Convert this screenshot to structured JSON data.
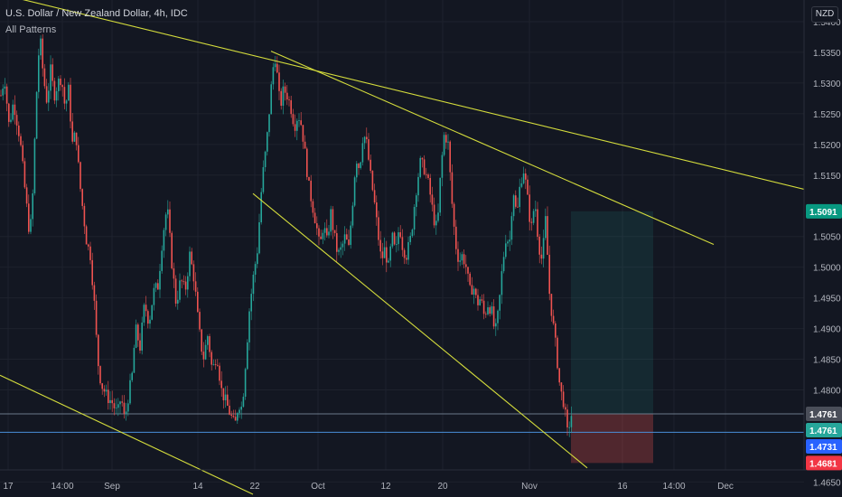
{
  "header": {
    "title": "U.S. Dollar / New Zealand Dollar, 4h, IDC",
    "indicator": "All Patterns"
  },
  "currency_label": "NZD",
  "colors": {
    "background": "#131722",
    "grid": "#1e222d",
    "up": "#26a69a",
    "down": "#ef5350",
    "trendline": "#d4dc3c",
    "axis_text": "#b2b5be",
    "hline": "#4a90d9"
  },
  "chart_data": {
    "type": "candlestick",
    "symbol": "USDNZD",
    "timeframe": "4h",
    "y_axis": {
      "range": [
        1.463,
        1.545
      ],
      "ticks": [
        "1.5400",
        "1.5350",
        "1.5300",
        "1.5250",
        "1.5200",
        "1.5150",
        "1.5050",
        "1.5000",
        "1.4950",
        "1.4900",
        "1.4850",
        "1.4800",
        "1.4650"
      ]
    },
    "x_axis": {
      "ticks": [
        "17",
        "14:00",
        "Sep",
        "14",
        "22",
        "Oct",
        "12",
        "20",
        "Nov",
        "16",
        "14:00",
        "Dec"
      ]
    },
    "price_labels": [
      {
        "value": 1.5091,
        "text": "1.5091",
        "kind": "last"
      },
      {
        "value": 1.4761,
        "text": "1.4761",
        "kind": "gray"
      },
      {
        "value": 1.4761,
        "text": "1.4761",
        "kind": "green"
      },
      {
        "value": 1.4731,
        "text": "1.4731",
        "kind": "blue"
      },
      {
        "value": 1.4681,
        "text": "1.4681",
        "kind": "red"
      }
    ],
    "price_path": [
      [
        1,
        1.528
      ],
      [
        5,
        1.531
      ],
      [
        10,
        1.523
      ],
      [
        15,
        1.527
      ],
      [
        22,
        1.521
      ],
      [
        28,
        1.512
      ],
      [
        33,
        1.505
      ],
      [
        36,
        1.511
      ],
      [
        40,
        1.527
      ],
      [
        44,
        1.538
      ],
      [
        48,
        1.531
      ],
      [
        52,
        1.527
      ],
      [
        56,
        1.532
      ],
      [
        60,
        1.528
      ],
      [
        64,
        1.53
      ],
      [
        68,
        1.531
      ],
      [
        72,
        1.526
      ],
      [
        76,
        1.529
      ],
      [
        80,
        1.52
      ],
      [
        84,
        1.522
      ],
      [
        88,
        1.514
      ],
      [
        92,
        1.509
      ],
      [
        96,
        1.504
      ],
      [
        100,
        1.502
      ],
      [
        104,
        1.495
      ],
      [
        108,
        1.485
      ],
      [
        112,
        1.481
      ],
      [
        118,
        1.479
      ],
      [
        124,
        1.478
      ],
      [
        130,
        1.476
      ],
      [
        134,
        1.479
      ],
      [
        138,
        1.475
      ],
      [
        142,
        1.479
      ],
      [
        146,
        1.482
      ],
      [
        150,
        1.49
      ],
      [
        155,
        1.487
      ],
      [
        160,
        1.494
      ],
      [
        165,
        1.491
      ],
      [
        170,
        1.496
      ],
      [
        175,
        1.497
      ],
      [
        180,
        1.505
      ],
      [
        185,
        1.51
      ],
      [
        190,
        1.501
      ],
      [
        195,
        1.494
      ],
      [
        200,
        1.498
      ],
      [
        205,
        1.496
      ],
      [
        210,
        1.502
      ],
      [
        215,
        1.498
      ],
      [
        220,
        1.49
      ],
      [
        225,
        1.485
      ],
      [
        230,
        1.489
      ],
      [
        235,
        1.483
      ],
      [
        240,
        1.486
      ],
      [
        245,
        1.48
      ],
      [
        250,
        1.478
      ],
      [
        255,
        1.476
      ],
      [
        260,
        1.474
      ],
      [
        264,
        1.478
      ],
      [
        268,
        1.477
      ],
      [
        272,
        1.485
      ],
      [
        276,
        1.493
      ],
      [
        280,
        1.498
      ],
      [
        285,
        1.503
      ],
      [
        290,
        1.514
      ],
      [
        295,
        1.52
      ],
      [
        300,
        1.529
      ],
      [
        304,
        1.535
      ],
      [
        307,
        1.531
      ],
      [
        310,
        1.526
      ],
      [
        314,
        1.529
      ],
      [
        318,
        1.528
      ],
      [
        322,
        1.526
      ],
      [
        326,
        1.523
      ],
      [
        330,
        1.525
      ],
      [
        334,
        1.523
      ],
      [
        338,
        1.518
      ],
      [
        342,
        1.513
      ],
      [
        346,
        1.51
      ],
      [
        350,
        1.507
      ],
      [
        354,
        1.503
      ],
      [
        358,
        1.507
      ],
      [
        362,
        1.504
      ],
      [
        366,
        1.509
      ],
      [
        370,
        1.505
      ],
      [
        374,
        1.502
      ],
      [
        378,
        1.503
      ],
      [
        382,
        1.505
      ],
      [
        386,
        1.503
      ],
      [
        390,
        1.51
      ],
      [
        394,
        1.518
      ],
      [
        398,
        1.516
      ],
      [
        402,
        1.522
      ],
      [
        406,
        1.52
      ],
      [
        410,
        1.515
      ],
      [
        414,
        1.511
      ],
      [
        418,
        1.506
      ],
      [
        422,
        1.501
      ],
      [
        426,
        1.503
      ],
      [
        430,
        1.5
      ],
      [
        434,
        1.505
      ],
      [
        438,
        1.502
      ],
      [
        442,
        1.507
      ],
      [
        446,
        1.503
      ],
      [
        450,
        1.502
      ],
      [
        455,
        1.505
      ],
      [
        460,
        1.512
      ],
      [
        465,
        1.517
      ],
      [
        470,
        1.516
      ],
      [
        475,
        1.513
      ],
      [
        480,
        1.508
      ],
      [
        484,
        1.506
      ],
      [
        488,
        1.516
      ],
      [
        492,
        1.522
      ],
      [
        496,
        1.52
      ],
      [
        500,
        1.511
      ],
      [
        504,
        1.504
      ],
      [
        508,
        1.501
      ],
      [
        512,
        1.502
      ],
      [
        516,
        1.5
      ],
      [
        520,
        1.496
      ],
      [
        524,
        1.497
      ],
      [
        528,
        1.494
      ],
      [
        532,
        1.495
      ],
      [
        536,
        1.492
      ],
      [
        540,
        1.494
      ],
      [
        544,
        1.493
      ],
      [
        548,
        1.489
      ],
      [
        552,
        1.493
      ],
      [
        556,
        1.5
      ],
      [
        560,
        1.505
      ],
      [
        564,
        1.504
      ],
      [
        568,
        1.513
      ],
      [
        572,
        1.508
      ],
      [
        576,
        1.514
      ],
      [
        580,
        1.516
      ],
      [
        584,
        1.511
      ],
      [
        588,
        1.506
      ],
      [
        592,
        1.511
      ],
      [
        596,
        1.504
      ],
      [
        600,
        1.501
      ],
      [
        604,
        1.508
      ],
      [
        608,
        1.496
      ],
      [
        612,
        1.491
      ],
      [
        616,
        1.486
      ],
      [
        620,
        1.48
      ],
      [
        624,
        1.478
      ],
      [
        628,
        1.473
      ],
      [
        631,
        1.475
      ],
      [
        634,
        1.477
      ]
    ],
    "trendlines": [
      {
        "x1": 0,
        "y1": 1.5445,
        "x2": 932,
        "y2": 1.5112
      },
      {
        "x1": 300,
        "y1": 1.5352,
        "x2": 790,
        "y2": 1.5037
      },
      {
        "x1": 280,
        "y1": 1.512,
        "x2": 650,
        "y2": 1.4673
      },
      {
        "x1": 0,
        "y1": 1.4824,
        "x2": 280,
        "y2": 1.463
      }
    ],
    "position": {
      "x_start": 632,
      "x_end": 723,
      "entry": 1.4761,
      "target": 1.5091,
      "stop": 1.4681
    },
    "horizontal_lines": [
      {
        "value": 1.4761,
        "color": "#6b7a8a"
      },
      {
        "value": 1.4731,
        "color": "#4a90d9"
      }
    ]
  }
}
